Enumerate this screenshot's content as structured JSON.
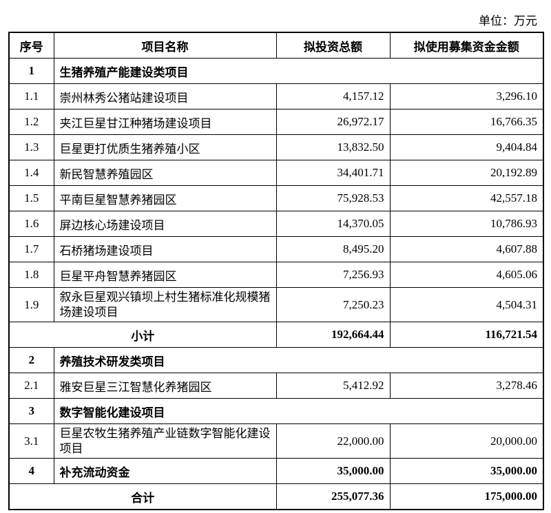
{
  "unit": "单位：万元",
  "headers": [
    "序号",
    "项目名称",
    "拟投资总额",
    "拟使用募集资金金额"
  ],
  "rows": [
    {
      "type": "category",
      "seq": "1",
      "name": "生猪养殖产能建设类项目"
    },
    {
      "type": "item",
      "seq": "1.1",
      "name": "崇州林秀公猪站建设项目",
      "total": "4,157.12",
      "raised": "3,296.10"
    },
    {
      "type": "item",
      "seq": "1.2",
      "name": "夹江巨星甘江种猪场建设项目",
      "total": "26,972.17",
      "raised": "16,766.35"
    },
    {
      "type": "item",
      "seq": "1.3",
      "name": "巨星更打优质生猪养殖小区",
      "total": "13,832.50",
      "raised": "9,404.84"
    },
    {
      "type": "item",
      "seq": "1.4",
      "name": "新民智慧养殖园区",
      "total": "34,401.71",
      "raised": "20,192.89"
    },
    {
      "type": "item",
      "seq": "1.5",
      "name": "平南巨星智慧养猪园区",
      "total": "75,928.53",
      "raised": "42,557.18"
    },
    {
      "type": "item",
      "seq": "1.6",
      "name": "屏边核心场建设项目",
      "total": "14,370.05",
      "raised": "10,786.93"
    },
    {
      "type": "item",
      "seq": "1.7",
      "name": "石桥猪场建设项目",
      "total": "8,495.20",
      "raised": "4,607.88"
    },
    {
      "type": "item",
      "seq": "1.8",
      "name": "巨星平舟智慧养猪园区",
      "total": "7,256.93",
      "raised": "4,605.06"
    },
    {
      "type": "item",
      "seq": "1.9",
      "name": "叙永巨星观兴镇坝上村生猪标准化规模猪场建设项目",
      "total": "7,250.23",
      "raised": "4,504.31",
      "tall": true
    },
    {
      "type": "subtotal",
      "name": "小计",
      "total": "192,664.44",
      "raised": "116,721.54"
    },
    {
      "type": "category",
      "seq": "2",
      "name": "养殖技术研发类项目"
    },
    {
      "type": "item",
      "seq": "2.1",
      "name": "雅安巨星三江智慧化养猪园区",
      "total": "5,412.92",
      "raised": "3,278.46"
    },
    {
      "type": "category",
      "seq": "3",
      "name": "数字智能化建设项目"
    },
    {
      "type": "item",
      "seq": "3.1",
      "name": "巨星农牧生猪养殖产业链数字智能化建设项目",
      "total": "22,000.00",
      "raised": "20,000.00",
      "tall": true
    },
    {
      "type": "bolditem",
      "seq": "4",
      "name": "补充流动资金",
      "total": "35,000.00",
      "raised": "35,000.00"
    },
    {
      "type": "subtotal",
      "name": "合计",
      "total": "255,077.36",
      "raised": "175,000.00"
    }
  ]
}
